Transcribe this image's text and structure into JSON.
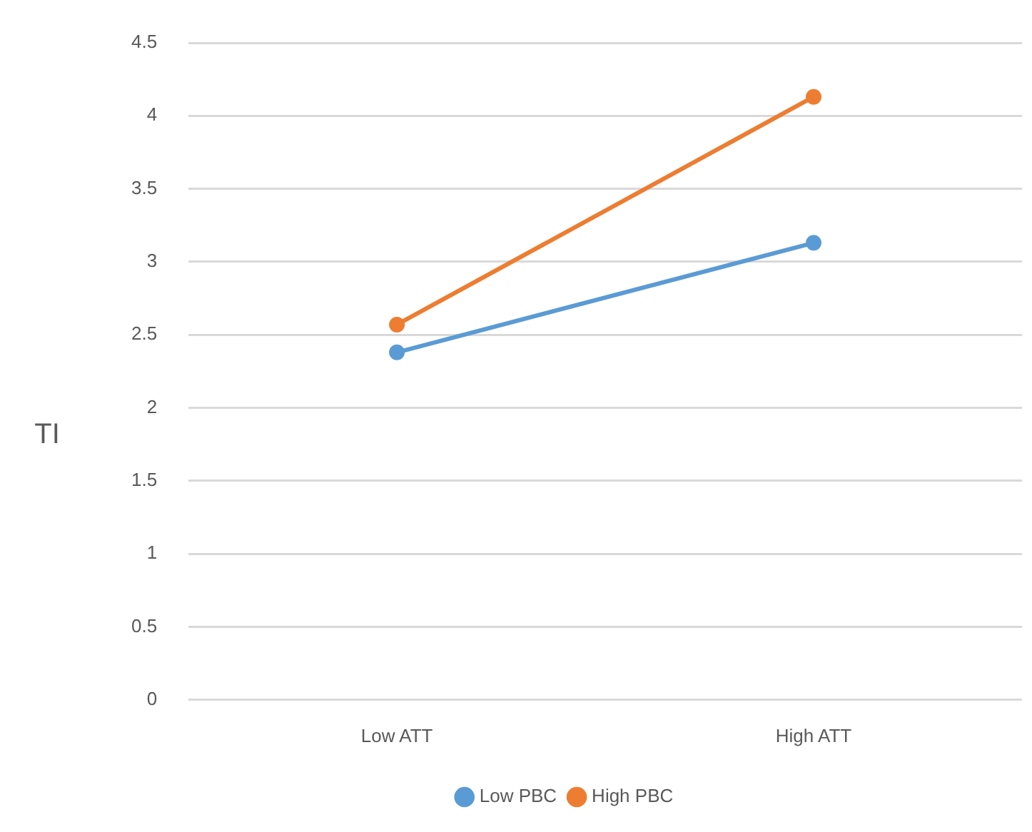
{
  "chart_data": {
    "type": "line",
    "ylabel": "TI",
    "categories": [
      "Low ATT",
      "High ATT"
    ],
    "series": [
      {
        "name": "Low PBC",
        "color": "#5b9bd5",
        "values": [
          2.38,
          3.13
        ]
      },
      {
        "name": "High PBC",
        "color": "#ed7d31",
        "values": [
          2.57,
          4.13
        ]
      }
    ],
    "ylim": [
      0,
      4.5
    ],
    "yticks": [
      0,
      0.5,
      1,
      1.5,
      2,
      2.5,
      3,
      3.5,
      4,
      4.5
    ],
    "grid": "y",
    "legend": "bottom",
    "marker": "circle",
    "line_style": "solid"
  }
}
